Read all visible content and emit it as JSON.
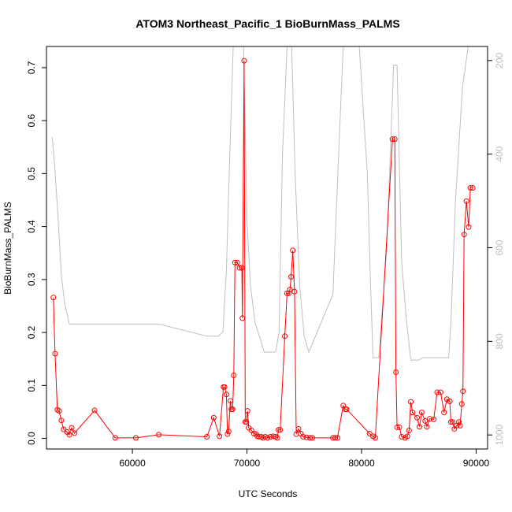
{
  "chart_data": {
    "type": "line",
    "title": "ATOM3 Northeast_Pacific_1 BioBurnMass_PALMS",
    "xlabel": "UTC Seconds",
    "ylabel": "BioBurnMass_PALMS",
    "xlim": [
      52500,
      91000
    ],
    "ylim": [
      -0.02,
      0.74
    ],
    "x_ticks": [
      60000,
      70000,
      80000,
      90000
    ],
    "y_ticks": [
      0.0,
      0.1,
      0.2,
      0.3,
      0.4,
      0.5,
      0.6,
      0.7
    ],
    "y2_ticks": [
      200,
      400,
      600,
      800,
      1000
    ],
    "y2_reversed": true,
    "y2_range": [
      1030,
      170
    ],
    "grid": false,
    "series": [
      {
        "color": "#ff0000",
        "marker": "open-circle",
        "points": [
          [
            53100,
            0.266
          ],
          [
            53250,
            0.16
          ],
          [
            53450,
            0.054
          ],
          [
            53600,
            0.052
          ],
          [
            53800,
            0.034
          ],
          [
            54000,
            0.017
          ],
          [
            54300,
            0.012
          ],
          [
            54500,
            0.007
          ],
          [
            54700,
            0.02
          ],
          [
            54950,
            0.01
          ],
          [
            56700,
            0.053
          ],
          [
            58500,
            0.001
          ],
          [
            60300,
            0.001
          ],
          [
            62300,
            0.007
          ],
          [
            66500,
            0.003
          ],
          [
            67100,
            0.039
          ],
          [
            67600,
            0.004
          ],
          [
            67950,
            0.097
          ],
          [
            68050,
            0.097
          ],
          [
            68200,
            0.083
          ],
          [
            68300,
            0.008
          ],
          [
            68400,
            0.013
          ],
          [
            68550,
            0.071
          ],
          [
            68650,
            0.055
          ],
          [
            68750,
            0.055
          ],
          [
            68850,
            0.119
          ],
          [
            68950,
            0.332
          ],
          [
            69150,
            0.332
          ],
          [
            69350,
            0.322
          ],
          [
            69550,
            0.322
          ],
          [
            69600,
            0.227
          ],
          [
            69750,
            0.713
          ],
          [
            69850,
            0.031
          ],
          [
            69950,
            0.031
          ],
          [
            70050,
            0.052
          ],
          [
            70150,
            0.02
          ],
          [
            70400,
            0.015
          ],
          [
            70600,
            0.009
          ],
          [
            70800,
            0.008
          ],
          [
            70900,
            0.004
          ],
          [
            71050,
            0.003
          ],
          [
            71250,
            0.003
          ],
          [
            71400,
            0.001
          ],
          [
            71600,
            0.003
          ],
          [
            71800,
            0.001
          ],
          [
            72050,
            0.003
          ],
          [
            72300,
            0.004
          ],
          [
            72500,
            0.003
          ],
          [
            72650,
            0.001
          ],
          [
            72750,
            0.016
          ],
          [
            72900,
            0.016
          ],
          [
            73300,
            0.193
          ],
          [
            73500,
            0.274
          ],
          [
            73650,
            0.274
          ],
          [
            73750,
            0.281
          ],
          [
            73850,
            0.305
          ],
          [
            74000,
            0.355
          ],
          [
            74150,
            0.277
          ],
          [
            74300,
            0.008
          ],
          [
            74500,
            0.018
          ],
          [
            74700,
            0.009
          ],
          [
            74900,
            0.003
          ],
          [
            75200,
            0.002
          ],
          [
            75500,
            0.001
          ],
          [
            75700,
            0.001
          ],
          [
            77500,
            0.001
          ],
          [
            77700,
            0.001
          ],
          [
            77900,
            0.001
          ],
          [
            78400,
            0.062
          ],
          [
            78600,
            0.055
          ],
          [
            78700,
            0.055
          ],
          [
            80700,
            0.009
          ],
          [
            81000,
            0.004
          ],
          [
            81200,
            0.001
          ],
          [
            82700,
            0.565
          ],
          [
            82900,
            0.565
          ],
          [
            83000,
            0.125
          ],
          [
            83100,
            0.021
          ],
          [
            83300,
            0.021
          ],
          [
            83500,
            0.003
          ],
          [
            83800,
            0.001
          ],
          [
            84000,
            0.004
          ],
          [
            84150,
            0.015
          ],
          [
            84300,
            0.069
          ],
          [
            84450,
            0.049
          ],
          [
            84850,
            0.039
          ],
          [
            85050,
            0.022
          ],
          [
            85250,
            0.049
          ],
          [
            85550,
            0.033
          ],
          [
            85700,
            0.022
          ],
          [
            85950,
            0.037
          ],
          [
            86300,
            0.036
          ],
          [
            86600,
            0.087
          ],
          [
            86900,
            0.087
          ],
          [
            87200,
            0.049
          ],
          [
            87450,
            0.074
          ],
          [
            87700,
            0.07
          ],
          [
            87800,
            0.031
          ],
          [
            87950,
            0.031
          ],
          [
            88100,
            0.018
          ],
          [
            88300,
            0.024
          ],
          [
            88500,
            0.031
          ],
          [
            88600,
            0.024
          ],
          [
            88750,
            0.065
          ],
          [
            88850,
            0.089
          ],
          [
            88950,
            0.385
          ],
          [
            89150,
            0.448
          ],
          [
            89350,
            0.399
          ],
          [
            89500,
            0.473
          ],
          [
            89700,
            0.473
          ]
        ]
      },
      {
        "color": "#bebebe",
        "axis": "right",
        "points": [
          [
            53000,
            364
          ],
          [
            53200,
            420
          ],
          [
            53500,
            530
          ],
          [
            53800,
            660
          ],
          [
            54100,
            720
          ],
          [
            54500,
            763
          ],
          [
            55000,
            763
          ],
          [
            60000,
            763
          ],
          [
            62300,
            763
          ],
          [
            66500,
            789
          ],
          [
            67500,
            789
          ],
          [
            67900,
            780
          ],
          [
            68200,
            650
          ],
          [
            68500,
            400
          ],
          [
            68800,
            170
          ],
          [
            69200,
            170
          ],
          [
            69700,
            170
          ],
          [
            70000,
            540
          ],
          [
            70300,
            680
          ],
          [
            70700,
            760
          ],
          [
            71200,
            798
          ],
          [
            71500,
            823
          ],
          [
            72500,
            823
          ],
          [
            72800,
            780
          ],
          [
            73100,
            400
          ],
          [
            73500,
            170
          ],
          [
            73900,
            170
          ],
          [
            74200,
            440
          ],
          [
            74600,
            680
          ],
          [
            75000,
            790
          ],
          [
            75400,
            823
          ],
          [
            77500,
            700
          ],
          [
            78000,
            400
          ],
          [
            78400,
            170
          ],
          [
            79800,
            170
          ],
          [
            80500,
            440
          ],
          [
            80800,
            690
          ],
          [
            81000,
            835
          ],
          [
            81500,
            835
          ],
          [
            82200,
            600
          ],
          [
            82800,
            210
          ],
          [
            83100,
            210
          ],
          [
            83500,
            630
          ],
          [
            83900,
            750
          ],
          [
            84300,
            840
          ],
          [
            85000,
            840
          ],
          [
            85300,
            835
          ],
          [
            87600,
            835
          ],
          [
            87800,
            760
          ],
          [
            88200,
            500
          ],
          [
            88800,
            260
          ],
          [
            89300,
            170
          ],
          [
            91000,
            170
          ]
        ]
      }
    ]
  }
}
